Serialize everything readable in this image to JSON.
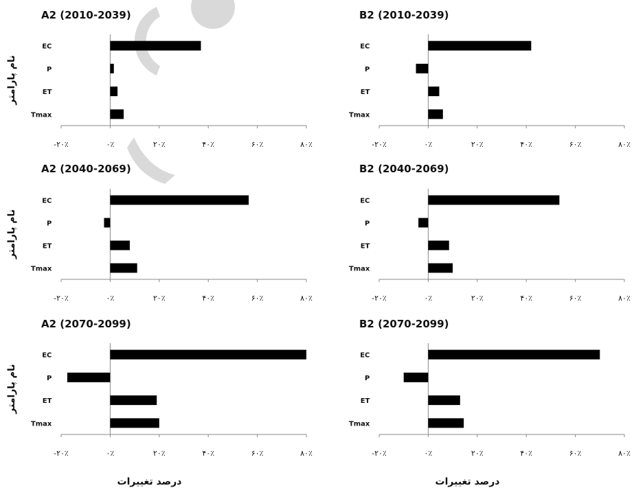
{
  "chart_data": [
    {
      "type": "bar",
      "orientation": "horizontal",
      "title": "A2 (2010-2039)",
      "categories": [
        "EC",
        "P",
        "ET",
        "Tmax"
      ],
      "values": [
        37,
        1.5,
        3,
        5.5
      ],
      "xlim": [
        -20,
        80
      ],
      "xticks": [
        "-۲۰٪",
        "۰٪",
        "۲۰٪",
        "۴۰٪",
        "۶۰٪",
        "۸۰٪"
      ],
      "ylabel": "نام پارامتر",
      "xlabel": ""
    },
    {
      "type": "bar",
      "orientation": "horizontal",
      "title": "B2 (2010-2039)",
      "categories": [
        "EC",
        "P",
        "ET",
        "Tmax"
      ],
      "values": [
        42,
        -5,
        4.5,
        6
      ],
      "xlim": [
        -20,
        80
      ],
      "xticks": [
        "-۲۰٪",
        "۰٪",
        "۲۰٪",
        "۴۰٪",
        "۶۰٪",
        "۸۰٪"
      ],
      "ylabel": "",
      "xlabel": ""
    },
    {
      "type": "bar",
      "orientation": "horizontal",
      "title": "A2 (2040-2069)",
      "categories": [
        "EC",
        "P",
        "ET",
        "Tmax"
      ],
      "values": [
        56.5,
        -2.5,
        8,
        11
      ],
      "xlim": [
        -20,
        80
      ],
      "xticks": [
        "-۲۰٪",
        "۰٪",
        "۲۰٪",
        "۴۰٪",
        "۶۰٪",
        "۸۰٪"
      ],
      "ylabel": "نام پارامتر",
      "xlabel": ""
    },
    {
      "type": "bar",
      "orientation": "horizontal",
      "title": "B2 (2040-2069)",
      "categories": [
        "EC",
        "P",
        "ET",
        "Tmax"
      ],
      "values": [
        53.5,
        -4,
        8.5,
        10
      ],
      "xlim": [
        -20,
        80
      ],
      "xticks": [
        "-۲۰٪",
        "۰٪",
        "۲۰٪",
        "۴۰٪",
        "۶۰٪",
        "۸۰٪"
      ],
      "ylabel": "",
      "xlabel": ""
    },
    {
      "type": "bar",
      "orientation": "horizontal",
      "title": "A2 (2070-2099)",
      "categories": [
        "EC",
        "P",
        "ET",
        "Tmax"
      ],
      "values": [
        80,
        -17.5,
        19,
        20
      ],
      "xlim": [
        -20,
        80
      ],
      "xticks": [
        "-۲۰٪",
        "۰٪",
        "۲۰٪",
        "۴۰٪",
        "۶۰٪",
        "۸۰٪"
      ],
      "ylabel": "نام پارامتر",
      "xlabel": "درصد تغییرات"
    },
    {
      "type": "bar",
      "orientation": "horizontal",
      "title": "B2 (2070-2099)",
      "categories": [
        "EC",
        "P",
        "ET",
        "Tmax"
      ],
      "values": [
        70,
        -10,
        13,
        14.5
      ],
      "xlim": [
        -20,
        80
      ],
      "xticks": [
        "-۲۰٪",
        "۰٪",
        "۲۰٪",
        "۴۰٪",
        "۶۰٪",
        "۸۰٪"
      ],
      "ylabel": "",
      "xlabel": "درصد تغییرات"
    }
  ],
  "colors": {
    "bar": "#000000",
    "axis": "#888888",
    "watermark": "#d9d9d9"
  }
}
